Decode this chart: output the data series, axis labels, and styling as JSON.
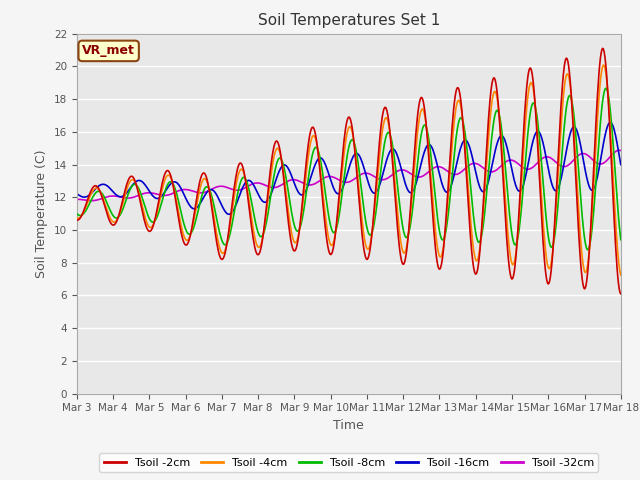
{
  "title": "Soil Temperatures Set 1",
  "xlabel": "Time",
  "ylabel": "Soil Temperature (C)",
  "ylim": [
    0,
    22
  ],
  "yticks": [
    0,
    2,
    4,
    6,
    8,
    10,
    12,
    14,
    16,
    18,
    20,
    22
  ],
  "xtick_labels": [
    "Mar 3",
    "Mar 4",
    "Mar 5",
    "Mar 6",
    "Mar 7",
    "Mar 8",
    "Mar 9",
    "Mar 10",
    "Mar 11",
    "Mar 12",
    "Mar 13",
    "Mar 14",
    "Mar 15",
    "Mar 16",
    "Mar 17",
    "Mar 18"
  ],
  "series_colors": [
    "#cc0000",
    "#ff8800",
    "#00bb00",
    "#0000cc",
    "#cc00cc"
  ],
  "series_labels": [
    "Tsoil -2cm",
    "Tsoil -4cm",
    "Tsoil -8cm",
    "Tsoil -16cm",
    "Tsoil -32cm"
  ],
  "annotation_text": "VR_met",
  "days": 15,
  "n_points": 720
}
